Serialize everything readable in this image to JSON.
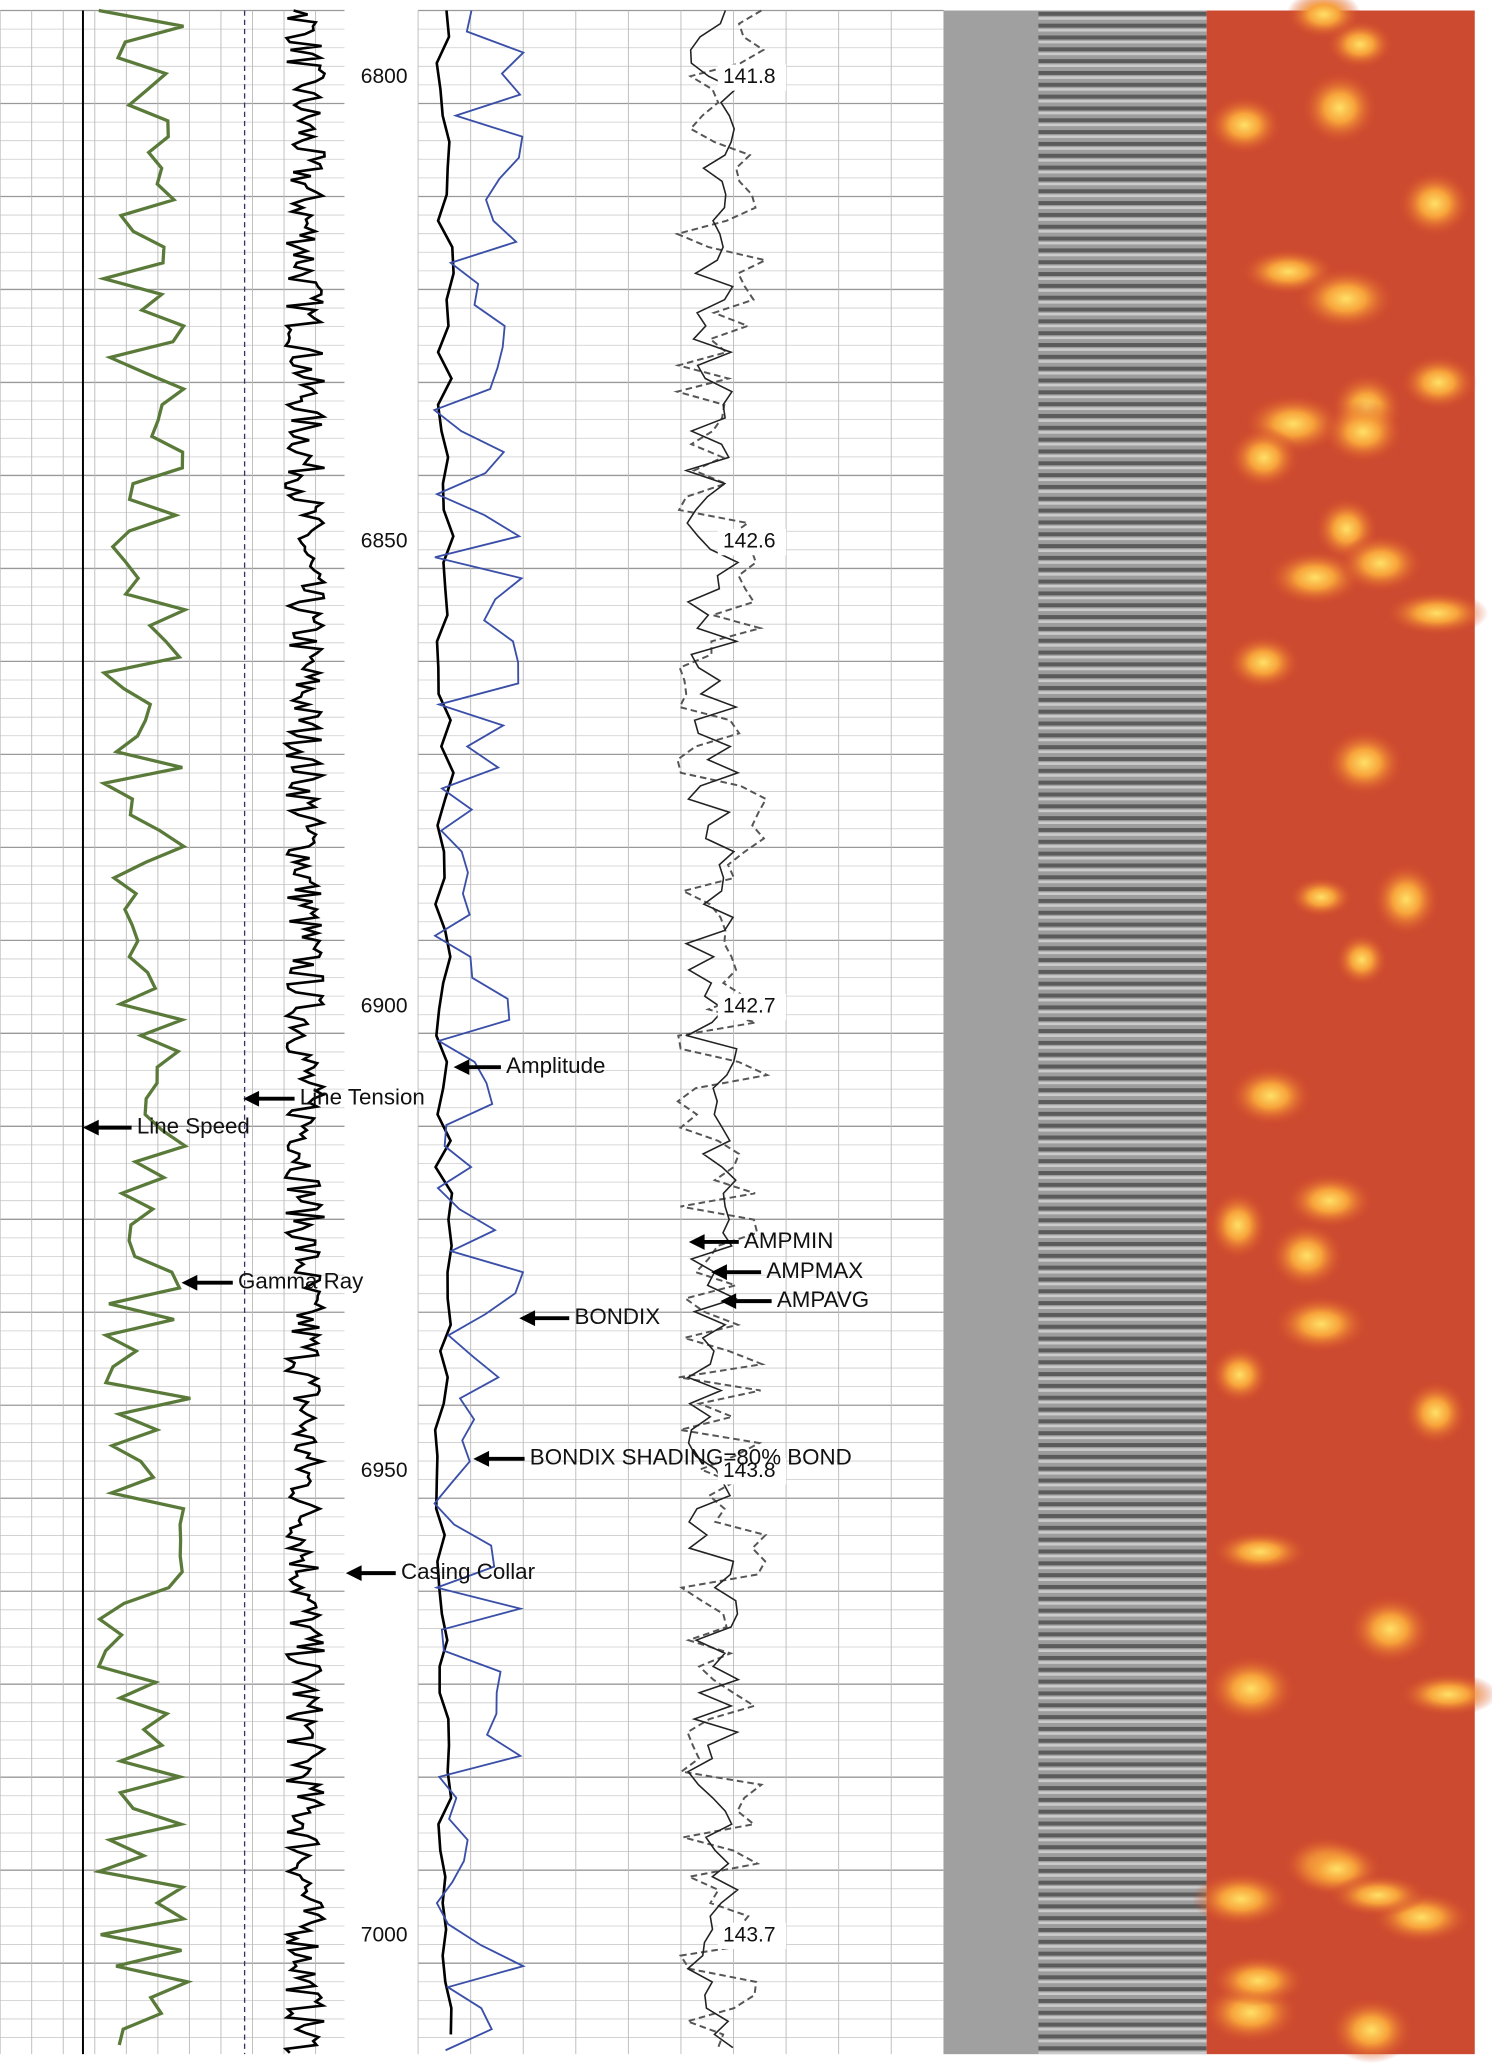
{
  "depth_track": {
    "labels": [
      6800,
      6850,
      6900,
      6950,
      7000
    ]
  },
  "temperature_labels": [
    "141.8",
    "142.6",
    "142.7",
    "143.8",
    "143.7"
  ],
  "annotations": [
    {
      "label": "Amplitude"
    },
    {
      "label": "Line Tension"
    },
    {
      "label": "Line Speed"
    },
    {
      "label": "Gamma Ray"
    },
    {
      "label": "AMPMIN"
    },
    {
      "label": "AMPMAX"
    },
    {
      "label": "AMPAVG"
    },
    {
      "label": "BONDIX"
    },
    {
      "label": "BONDIX SHADING=80% BOND"
    },
    {
      "label": "Casing Collar"
    }
  ]
}
